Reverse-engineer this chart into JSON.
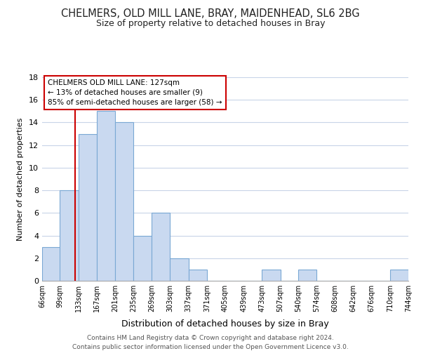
{
  "title": "CHELMERS, OLD MILL LANE, BRAY, MAIDENHEAD, SL6 2BG",
  "subtitle": "Size of property relative to detached houses in Bray",
  "xlabel": "Distribution of detached houses by size in Bray",
  "ylabel": "Number of detached properties",
  "bar_left_edges": [
    66,
    99,
    133,
    167,
    201,
    235,
    269,
    303,
    337,
    371,
    405,
    439,
    473,
    507,
    540,
    574,
    608,
    642,
    676,
    710
  ],
  "bar_heights": [
    3,
    8,
    13,
    15,
    14,
    4,
    6,
    2,
    1,
    0,
    0,
    0,
    1,
    0,
    1,
    0,
    0,
    0,
    0,
    1
  ],
  "bin_width": 34,
  "bar_color": "#c9d9f0",
  "bar_edge_color": "#7aa8d4",
  "x_tick_labels": [
    "66sqm",
    "99sqm",
    "133sqm",
    "167sqm",
    "201sqm",
    "235sqm",
    "269sqm",
    "303sqm",
    "337sqm",
    "371sqm",
    "405sqm",
    "439sqm",
    "473sqm",
    "507sqm",
    "540sqm",
    "574sqm",
    "608sqm",
    "642sqm",
    "676sqm",
    "710sqm",
    "744sqm"
  ],
  "ylim": [
    0,
    18
  ],
  "yticks": [
    0,
    2,
    4,
    6,
    8,
    10,
    12,
    14,
    16,
    18
  ],
  "reference_line_x": 127,
  "reference_line_color": "#cc0000",
  "annotation_title": "CHELMERS OLD MILL LANE: 127sqm",
  "annotation_line1": "← 13% of detached houses are smaller (9)",
  "annotation_line2": "85% of semi-detached houses are larger (58) →",
  "annotation_box_color": "#ffffff",
  "annotation_box_edge_color": "#cc0000",
  "footer_line1": "Contains HM Land Registry data © Crown copyright and database right 2024.",
  "footer_line2": "Contains public sector information licensed under the Open Government Licence v3.0.",
  "background_color": "#ffffff",
  "grid_color": "#c8d4e8"
}
